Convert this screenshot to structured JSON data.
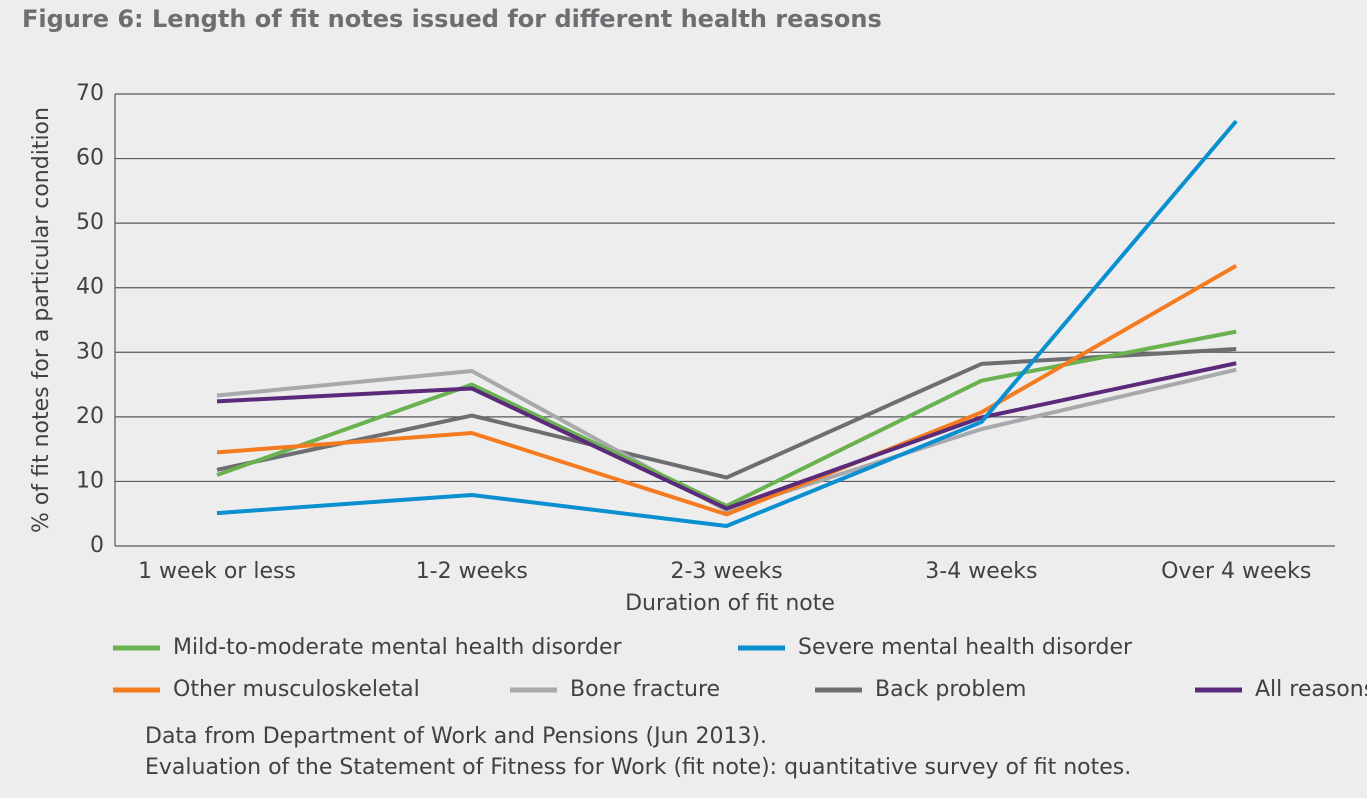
{
  "chart_data": {
    "type": "line",
    "title": "Figure 6: Length of fit notes issued for different health reasons",
    "categories": [
      "1 week or less",
      "1-2 weeks",
      "2-3 weeks",
      "3-4 weeks",
      "Over 4 weeks"
    ],
    "series": [
      {
        "name": "Mild-to-moderate mental health disorder",
        "color": "#6ab150",
        "values": [
          11,
          25,
          6.2,
          25.6,
          33.2
        ]
      },
      {
        "name": "Severe mental health disorder",
        "color": "#0a8fd0",
        "values": [
          5.1,
          7.9,
          3.1,
          19.2,
          65.8
        ]
      },
      {
        "name": "Other musculoskeletal",
        "color": "#f47b20",
        "values": [
          14.5,
          17.5,
          4.9,
          20.7,
          43.4
        ]
      },
      {
        "name": "Bone fracture",
        "color": "#a7a9ac",
        "values": [
          23.3,
          27.1,
          5.5,
          18.1,
          27.3
        ]
      },
      {
        "name": "Back problem",
        "color": "#6d6e71",
        "values": [
          11.8,
          20.2,
          10.6,
          28.2,
          30.5
        ]
      },
      {
        "name": "All reasons",
        "color": "#5b2a7a",
        "values": [
          22.4,
          24.4,
          5.8,
          19.9,
          28.3
        ]
      }
    ],
    "ylim": [
      0,
      70
    ],
    "yticks": [
      0,
      10,
      20,
      30,
      40,
      50,
      60,
      70
    ],
    "grid": true,
    "ylabel": "% of fit notes for a particular condition",
    "xlabel": "Duration of fit note",
    "notes": [
      "Data from Department of Work and Pensions (Jun 2013).",
      "Evaluation of the Statement of Fitness for Work (fit note): quantitative survey of fit notes."
    ]
  }
}
